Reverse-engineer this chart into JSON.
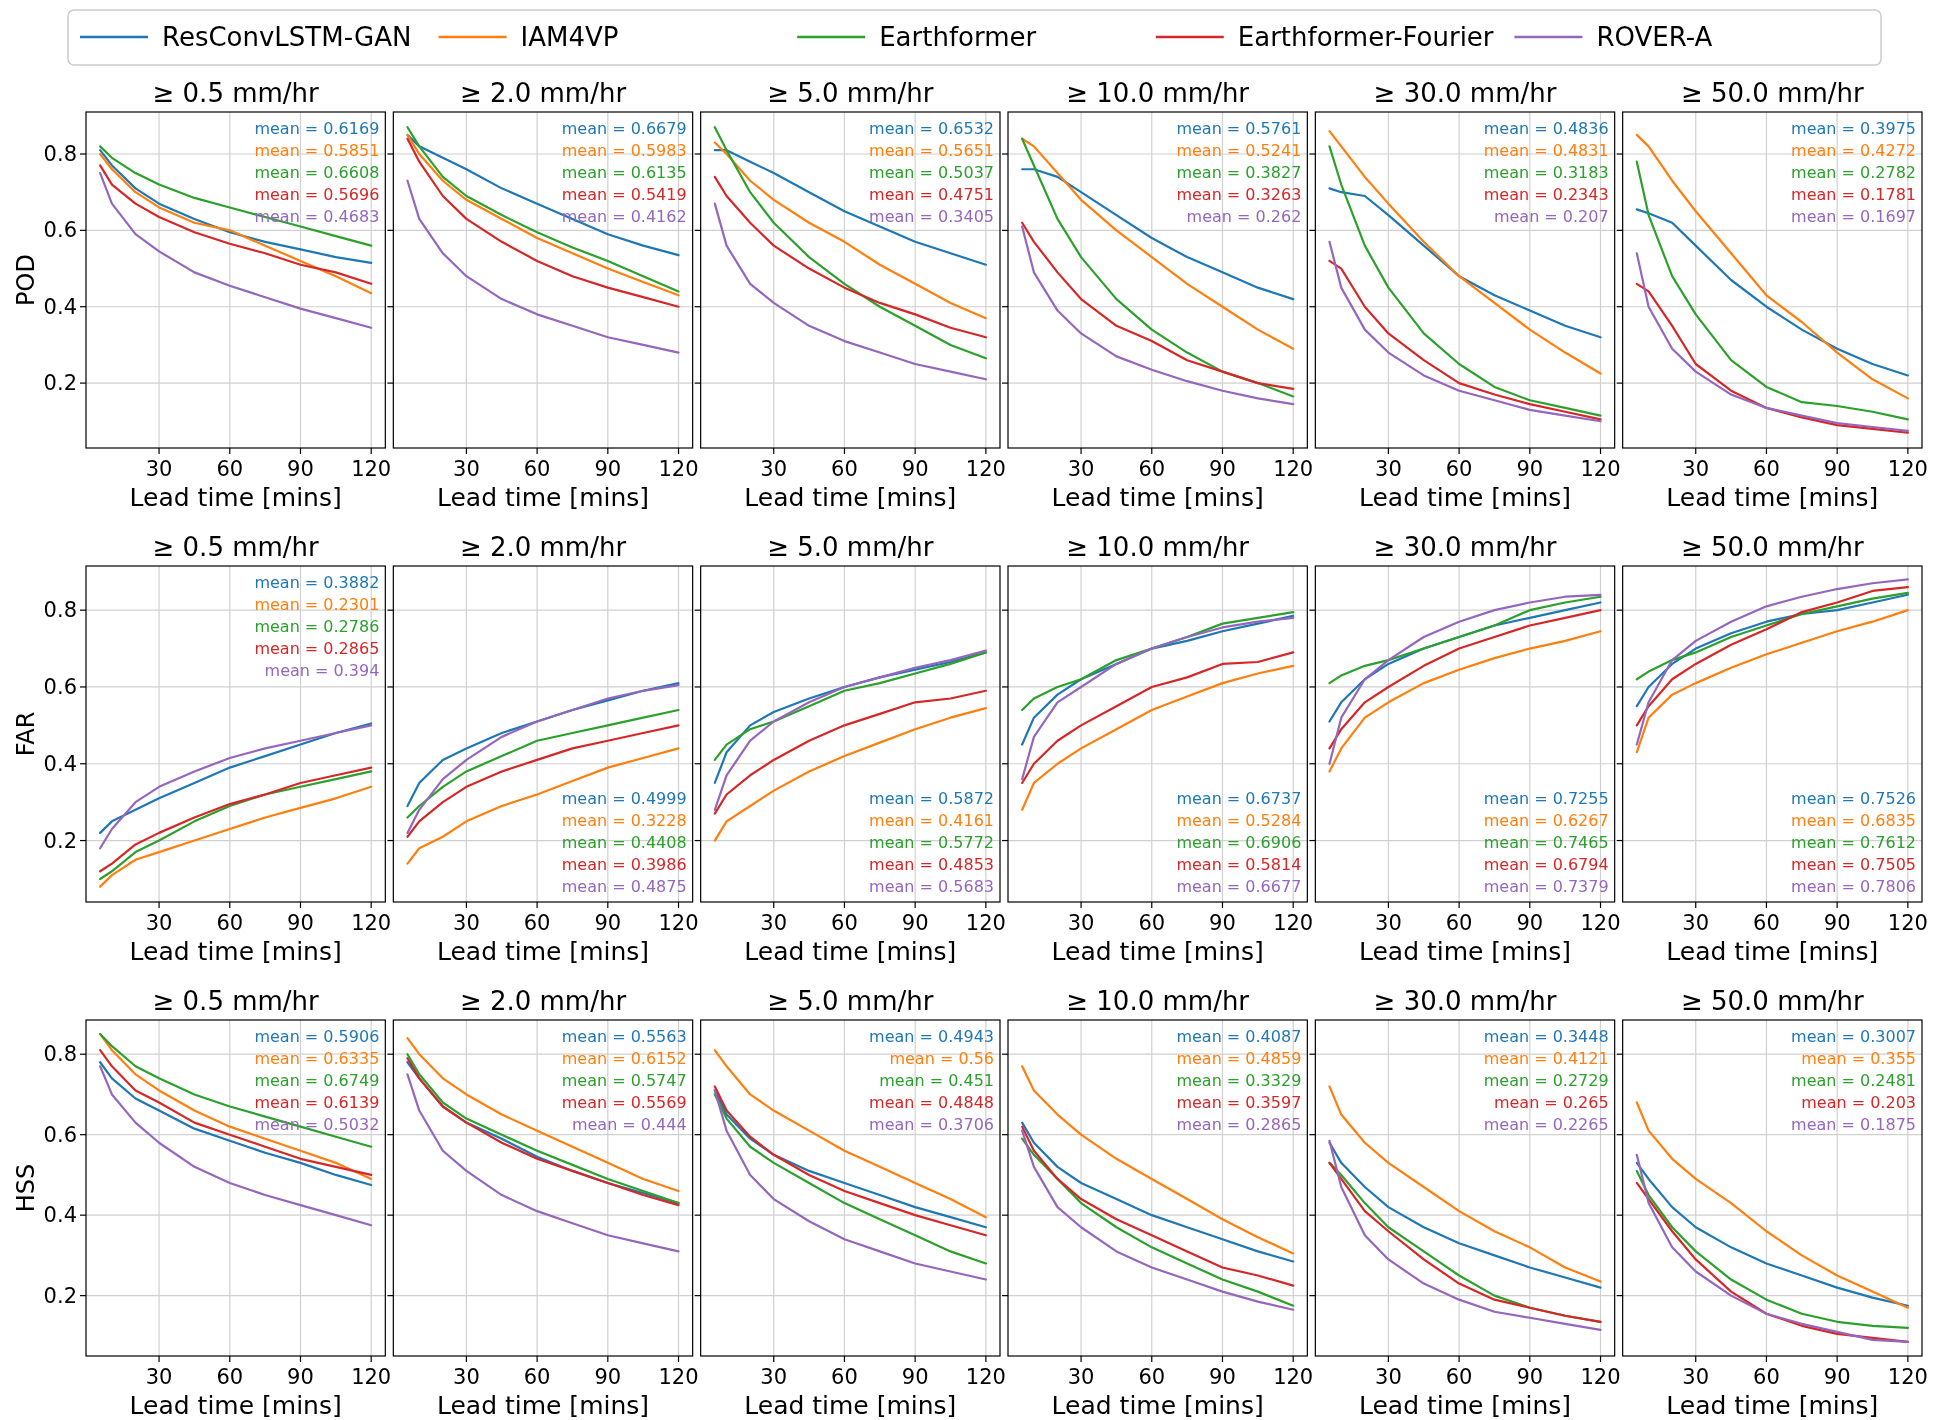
{
  "chart_data": [
    {
      "type": "line",
      "legend": "top",
      "title": "≥ 0.5 mm/hr",
      "xlabel": "Lead time [mins]",
      "ylabel": "POD",
      "x": [
        5,
        10,
        20,
        30,
        45,
        60,
        75,
        90,
        105,
        120
      ],
      "xlim": [
        -1,
        126
      ],
      "xticks": [
        30,
        60,
        90,
        120
      ],
      "ylim": [
        0.03,
        0.91
      ],
      "yticks": [
        0.2,
        0.4,
        0.6,
        0.8
      ],
      "grid": true,
      "annotations": [
        "mean = 0.6169",
        "mean = 0.5851",
        "mean = 0.6608",
        "mean = 0.5696",
        "mean = 0.4683"
      ],
      "series": [
        {
          "name": "ResConvLSTM-GAN",
          "color": "#1f77b4",
          "values": [
            0.81,
            0.77,
            0.71,
            0.67,
            0.63,
            0.595,
            0.57,
            0.55,
            0.53,
            0.515
          ]
        },
        {
          "name": "IAM4VP",
          "color": "#ff7f0e",
          "values": [
            0.8,
            0.76,
            0.7,
            0.66,
            0.62,
            0.6,
            0.56,
            0.52,
            0.48,
            0.435
          ]
        },
        {
          "name": "Earthformer",
          "color": "#2ca02c",
          "values": [
            0.82,
            0.79,
            0.75,
            0.72,
            0.685,
            0.66,
            0.635,
            0.61,
            0.585,
            0.56
          ]
        },
        {
          "name": "Earthformer-Fourier",
          "color": "#d62728",
          "values": [
            0.77,
            0.72,
            0.67,
            0.635,
            0.595,
            0.565,
            0.54,
            0.51,
            0.49,
            0.46
          ]
        },
        {
          "name": "ROVER-A",
          "color": "#9467bd",
          "values": [
            0.75,
            0.67,
            0.59,
            0.545,
            0.49,
            0.455,
            0.425,
            0.395,
            0.37,
            0.345
          ]
        }
      ]
    },
    {
      "type": "line",
      "title": "≥ 2.0 mm/hr",
      "xlabel": "Lead time [mins]",
      "tick_labels": "x",
      "x": [
        5,
        10,
        20,
        30,
        45,
        60,
        75,
        90,
        105,
        120
      ],
      "xlim": [
        -1,
        126
      ],
      "xticks": [
        30,
        60,
        90,
        120
      ],
      "ylim": [
        0.03,
        0.91
      ],
      "yticks": [
        0.2,
        0.4,
        0.6,
        0.8
      ],
      "grid": true,
      "annotations": [
        "mean = 0.6679",
        "mean = 0.5983",
        "mean = 0.6135",
        "mean = 0.5419",
        "mean = 0.4162"
      ],
      "series": [
        {
          "name": "ResConvLSTM-GAN",
          "color": "#1f77b4",
          "values": [
            0.85,
            0.82,
            0.79,
            0.76,
            0.71,
            0.67,
            0.63,
            0.59,
            0.56,
            0.535
          ]
        },
        {
          "name": "IAM4VP",
          "color": "#ff7f0e",
          "values": [
            0.85,
            0.8,
            0.73,
            0.68,
            0.63,
            0.58,
            0.54,
            0.5,
            0.465,
            0.43
          ]
        },
        {
          "name": "Earthformer",
          "color": "#2ca02c",
          "values": [
            0.87,
            0.82,
            0.74,
            0.69,
            0.64,
            0.595,
            0.555,
            0.52,
            0.48,
            0.44
          ]
        },
        {
          "name": "Earthformer-Fourier",
          "color": "#d62728",
          "values": [
            0.84,
            0.78,
            0.69,
            0.63,
            0.57,
            0.52,
            0.48,
            0.45,
            0.425,
            0.4
          ]
        },
        {
          "name": "ROVER-A",
          "color": "#9467bd",
          "values": [
            0.73,
            0.63,
            0.54,
            0.48,
            0.42,
            0.38,
            0.35,
            0.32,
            0.3,
            0.28
          ]
        }
      ]
    },
    {
      "type": "line",
      "title": "≥ 5.0 mm/hr",
      "xlabel": "Lead time [mins]",
      "tick_labels": "x",
      "x": [
        5,
        10,
        20,
        30,
        45,
        60,
        75,
        90,
        105,
        120
      ],
      "xlim": [
        -1,
        126
      ],
      "xticks": [
        30,
        60,
        90,
        120
      ],
      "ylim": [
        0.03,
        0.91
      ],
      "yticks": [
        0.2,
        0.4,
        0.6,
        0.8
      ],
      "grid": true,
      "annotations": [
        "mean = 0.6532",
        "mean = 0.5651",
        "mean = 0.5037",
        "mean = 0.4751",
        "mean = 0.3405"
      ],
      "series": [
        {
          "name": "ResConvLSTM-GAN",
          "color": "#1f77b4",
          "values": [
            0.81,
            0.81,
            0.78,
            0.75,
            0.7,
            0.65,
            0.61,
            0.57,
            0.54,
            0.51
          ]
        },
        {
          "name": "IAM4VP",
          "color": "#ff7f0e",
          "values": [
            0.83,
            0.8,
            0.73,
            0.68,
            0.62,
            0.57,
            0.51,
            0.46,
            0.41,
            0.37
          ]
        },
        {
          "name": "Earthformer",
          "color": "#2ca02c",
          "values": [
            0.87,
            0.81,
            0.7,
            0.62,
            0.53,
            0.46,
            0.4,
            0.35,
            0.3,
            0.265
          ]
        },
        {
          "name": "Earthformer-Fourier",
          "color": "#d62728",
          "values": [
            0.74,
            0.69,
            0.62,
            0.56,
            0.5,
            0.45,
            0.41,
            0.38,
            0.345,
            0.32
          ]
        },
        {
          "name": "ROVER-A",
          "color": "#9467bd",
          "values": [
            0.67,
            0.56,
            0.46,
            0.41,
            0.35,
            0.31,
            0.28,
            0.25,
            0.23,
            0.21
          ]
        }
      ]
    },
    {
      "type": "line",
      "title": "≥ 10.0 mm/hr",
      "xlabel": "Lead time [mins]",
      "tick_labels": "x",
      "x": [
        5,
        10,
        20,
        30,
        45,
        60,
        75,
        90,
        105,
        120
      ],
      "xlim": [
        -1,
        126
      ],
      "xticks": [
        30,
        60,
        90,
        120
      ],
      "ylim": [
        0.03,
        0.91
      ],
      "yticks": [
        0.2,
        0.4,
        0.6,
        0.8
      ],
      "grid": true,
      "annotations": [
        "mean = 0.5761",
        "mean = 0.5241",
        "mean = 0.3827",
        "mean = 0.3263",
        "mean = 0.262"
      ],
      "series": [
        {
          "name": "ResConvLSTM-GAN",
          "color": "#1f77b4",
          "values": [
            0.76,
            0.76,
            0.74,
            0.7,
            0.64,
            0.58,
            0.53,
            0.49,
            0.45,
            0.42
          ]
        },
        {
          "name": "IAM4VP",
          "color": "#ff7f0e",
          "values": [
            0.84,
            0.82,
            0.75,
            0.68,
            0.6,
            0.53,
            0.46,
            0.4,
            0.34,
            0.29
          ]
        },
        {
          "name": "Earthformer",
          "color": "#2ca02c",
          "values": [
            0.84,
            0.77,
            0.63,
            0.53,
            0.42,
            0.34,
            0.28,
            0.23,
            0.2,
            0.165
          ]
        },
        {
          "name": "Earthformer-Fourier",
          "color": "#d62728",
          "values": [
            0.62,
            0.57,
            0.49,
            0.42,
            0.35,
            0.31,
            0.26,
            0.23,
            0.2,
            0.185
          ]
        },
        {
          "name": "ROVER-A",
          "color": "#9467bd",
          "values": [
            0.61,
            0.49,
            0.39,
            0.33,
            0.27,
            0.235,
            0.205,
            0.18,
            0.16,
            0.145
          ]
        }
      ]
    },
    {
      "type": "line",
      "title": "≥ 30.0 mm/hr",
      "xlabel": "Lead time [mins]",
      "tick_labels": "x",
      "x": [
        5,
        10,
        20,
        30,
        45,
        60,
        75,
        90,
        105,
        120
      ],
      "xlim": [
        -1,
        126
      ],
      "xticks": [
        30,
        60,
        90,
        120
      ],
      "ylim": [
        0.03,
        0.91
      ],
      "yticks": [
        0.2,
        0.4,
        0.6,
        0.8
      ],
      "grid": true,
      "annotations": [
        "mean = 0.4836",
        "mean = 0.4831",
        "mean = 0.3183",
        "mean = 0.2343",
        "mean = 0.207"
      ],
      "series": [
        {
          "name": "ResConvLSTM-GAN",
          "color": "#1f77b4",
          "values": [
            0.71,
            0.7,
            0.69,
            0.64,
            0.56,
            0.48,
            0.43,
            0.39,
            0.35,
            0.32
          ]
        },
        {
          "name": "IAM4VP",
          "color": "#ff7f0e",
          "values": [
            0.86,
            0.82,
            0.74,
            0.67,
            0.57,
            0.48,
            0.41,
            0.34,
            0.28,
            0.225
          ]
        },
        {
          "name": "Earthformer",
          "color": "#2ca02c",
          "values": [
            0.82,
            0.72,
            0.56,
            0.45,
            0.33,
            0.25,
            0.19,
            0.155,
            0.135,
            0.115
          ]
        },
        {
          "name": "Earthformer-Fourier",
          "color": "#d62728",
          "values": [
            0.52,
            0.5,
            0.4,
            0.33,
            0.26,
            0.2,
            0.17,
            0.145,
            0.125,
            0.105
          ]
        },
        {
          "name": "ROVER-A",
          "color": "#9467bd",
          "values": [
            0.57,
            0.45,
            0.34,
            0.28,
            0.22,
            0.18,
            0.155,
            0.13,
            0.115,
            0.1
          ]
        }
      ]
    },
    {
      "type": "line",
      "title": "≥ 50.0 mm/hr",
      "xlabel": "Lead time [mins]",
      "tick_labels": "x",
      "x": [
        5,
        10,
        20,
        30,
        45,
        60,
        75,
        90,
        105,
        120
      ],
      "xlim": [
        -1,
        126
      ],
      "xticks": [
        30,
        60,
        90,
        120
      ],
      "ylim": [
        0.03,
        0.91
      ],
      "yticks": [
        0.2,
        0.4,
        0.6,
        0.8
      ],
      "grid": true,
      "annotations": [
        "mean = 0.3975",
        "mean = 0.4272",
        "mean = 0.2782",
        "mean = 0.1781",
        "mean = 0.1697"
      ],
      "series": [
        {
          "name": "ResConvLSTM-GAN",
          "color": "#1f77b4",
          "values": [
            0.655,
            0.645,
            0.62,
            0.56,
            0.47,
            0.4,
            0.34,
            0.29,
            0.25,
            0.22
          ]
        },
        {
          "name": "IAM4VP",
          "color": "#ff7f0e",
          "values": [
            0.85,
            0.82,
            0.73,
            0.65,
            0.54,
            0.43,
            0.36,
            0.28,
            0.21,
            0.16
          ]
        },
        {
          "name": "Earthformer",
          "color": "#2ca02c",
          "values": [
            0.78,
            0.64,
            0.48,
            0.38,
            0.26,
            0.19,
            0.15,
            0.14,
            0.125,
            0.105
          ]
        },
        {
          "name": "Earthformer-Fourier",
          "color": "#d62728",
          "values": [
            0.46,
            0.44,
            0.35,
            0.25,
            0.18,
            0.135,
            0.11,
            0.09,
            0.08,
            0.07
          ]
        },
        {
          "name": "ROVER-A",
          "color": "#9467bd",
          "values": [
            0.54,
            0.4,
            0.29,
            0.23,
            0.17,
            0.135,
            0.115,
            0.095,
            0.085,
            0.075
          ]
        }
      ]
    },
    {
      "type": "line",
      "title": "≥ 0.5 mm/hr",
      "xlabel": "Lead time [mins]",
      "ylabel": "FAR",
      "x": [
        5,
        10,
        20,
        30,
        45,
        60,
        75,
        90,
        105,
        120
      ],
      "xlim": [
        -1,
        126
      ],
      "xticks": [
        30,
        60,
        90,
        120
      ],
      "ylim": [
        0.04,
        0.915
      ],
      "yticks": [
        0.2,
        0.4,
        0.6,
        0.8
      ],
      "grid": true,
      "annotations": [
        "mean = 0.3882",
        "mean = 0.2301",
        "mean = 0.2786",
        "mean = 0.2865",
        "mean = 0.394"
      ],
      "series": [
        {
          "name": "ResConvLSTM-GAN",
          "color": "#1f77b4",
          "values": [
            0.22,
            0.25,
            0.28,
            0.31,
            0.35,
            0.39,
            0.42,
            0.45,
            0.48,
            0.505
          ]
        },
        {
          "name": "IAM4VP",
          "color": "#ff7f0e",
          "values": [
            0.08,
            0.11,
            0.15,
            0.17,
            0.2,
            0.23,
            0.26,
            0.285,
            0.31,
            0.34
          ]
        },
        {
          "name": "Earthformer",
          "color": "#2ca02c",
          "values": [
            0.1,
            0.12,
            0.17,
            0.2,
            0.25,
            0.29,
            0.32,
            0.34,
            0.36,
            0.38
          ]
        },
        {
          "name": "Earthformer-Fourier",
          "color": "#d62728",
          "values": [
            0.12,
            0.14,
            0.19,
            0.22,
            0.26,
            0.295,
            0.32,
            0.35,
            0.37,
            0.39
          ]
        },
        {
          "name": "ROVER-A",
          "color": "#9467bd",
          "values": [
            0.18,
            0.23,
            0.3,
            0.34,
            0.38,
            0.415,
            0.44,
            0.46,
            0.48,
            0.5
          ]
        }
      ]
    },
    {
      "type": "line",
      "title": "≥ 2.0 mm/hr",
      "xlabel": "Lead time [mins]",
      "tick_labels": "x",
      "x": [
        5,
        10,
        20,
        30,
        45,
        60,
        75,
        90,
        105,
        120
      ],
      "xlim": [
        -1,
        126
      ],
      "xticks": [
        30,
        60,
        90,
        120
      ],
      "ylim": [
        0.04,
        0.915
      ],
      "yticks": [
        0.2,
        0.4,
        0.6,
        0.8
      ],
      "grid": true,
      "annotations": [
        "mean = 0.4999",
        "mean = 0.3228",
        "mean = 0.4408",
        "mean = 0.3986",
        "mean = 0.4875"
      ],
      "series": [
        {
          "name": "ResConvLSTM-GAN",
          "color": "#1f77b4",
          "values": [
            0.29,
            0.35,
            0.41,
            0.44,
            0.48,
            0.51,
            0.54,
            0.565,
            0.59,
            0.61
          ]
        },
        {
          "name": "IAM4VP",
          "color": "#ff7f0e",
          "values": [
            0.14,
            0.18,
            0.21,
            0.25,
            0.29,
            0.32,
            0.355,
            0.39,
            0.415,
            0.44
          ]
        },
        {
          "name": "Earthformer",
          "color": "#2ca02c",
          "values": [
            0.26,
            0.29,
            0.34,
            0.38,
            0.42,
            0.46,
            0.48,
            0.5,
            0.52,
            0.54
          ]
        },
        {
          "name": "Earthformer-Fourier",
          "color": "#d62728",
          "values": [
            0.21,
            0.25,
            0.3,
            0.34,
            0.38,
            0.41,
            0.44,
            0.46,
            0.48,
            0.5
          ]
        },
        {
          "name": "ROVER-A",
          "color": "#9467bd",
          "values": [
            0.22,
            0.28,
            0.36,
            0.41,
            0.47,
            0.51,
            0.54,
            0.57,
            0.59,
            0.605
          ]
        }
      ]
    },
    {
      "type": "line",
      "title": "≥ 5.0 mm/hr",
      "xlabel": "Lead time [mins]",
      "tick_labels": "x",
      "x": [
        5,
        10,
        20,
        30,
        45,
        60,
        75,
        90,
        105,
        120
      ],
      "xlim": [
        -1,
        126
      ],
      "xticks": [
        30,
        60,
        90,
        120
      ],
      "ylim": [
        0.04,
        0.915
      ],
      "yticks": [
        0.2,
        0.4,
        0.6,
        0.8
      ],
      "grid": true,
      "annotations": [
        "mean = 0.5872",
        "mean = 0.4161",
        "mean = 0.5772",
        "mean = 0.4853",
        "mean = 0.5683"
      ],
      "series": [
        {
          "name": "ResConvLSTM-GAN",
          "color": "#1f77b4",
          "values": [
            0.35,
            0.43,
            0.5,
            0.535,
            0.57,
            0.6,
            0.625,
            0.645,
            0.665,
            0.69
          ]
        },
        {
          "name": "IAM4VP",
          "color": "#ff7f0e",
          "values": [
            0.2,
            0.25,
            0.29,
            0.33,
            0.38,
            0.42,
            0.455,
            0.49,
            0.52,
            0.545
          ]
        },
        {
          "name": "Earthformer",
          "color": "#2ca02c",
          "values": [
            0.41,
            0.45,
            0.49,
            0.51,
            0.55,
            0.59,
            0.61,
            0.635,
            0.66,
            0.69
          ]
        },
        {
          "name": "Earthformer-Fourier",
          "color": "#d62728",
          "values": [
            0.27,
            0.32,
            0.37,
            0.41,
            0.46,
            0.5,
            0.53,
            0.56,
            0.57,
            0.59
          ]
        },
        {
          "name": "ROVER-A",
          "color": "#9467bd",
          "values": [
            0.28,
            0.37,
            0.46,
            0.51,
            0.56,
            0.6,
            0.625,
            0.65,
            0.67,
            0.695
          ]
        }
      ]
    },
    {
      "type": "line",
      "title": "≥ 10.0 mm/hr",
      "xlabel": "Lead time [mins]",
      "tick_labels": "x",
      "x": [
        5,
        10,
        20,
        30,
        45,
        60,
        75,
        90,
        105,
        120
      ],
      "xlim": [
        -1,
        126
      ],
      "xticks": [
        30,
        60,
        90,
        120
      ],
      "ylim": [
        0.04,
        0.915
      ],
      "yticks": [
        0.2,
        0.4,
        0.6,
        0.8
      ],
      "grid": true,
      "annotations": [
        "mean = 0.6737",
        "mean = 0.5284",
        "mean = 0.6906",
        "mean = 0.5814",
        "mean = 0.6677"
      ],
      "series": [
        {
          "name": "ResConvLSTM-GAN",
          "color": "#1f77b4",
          "values": [
            0.45,
            0.52,
            0.58,
            0.62,
            0.66,
            0.7,
            0.72,
            0.745,
            0.765,
            0.785
          ]
        },
        {
          "name": "IAM4VP",
          "color": "#ff7f0e",
          "values": [
            0.28,
            0.35,
            0.4,
            0.44,
            0.49,
            0.54,
            0.575,
            0.61,
            0.635,
            0.655
          ]
        },
        {
          "name": "Earthformer",
          "color": "#2ca02c",
          "values": [
            0.54,
            0.57,
            0.6,
            0.62,
            0.67,
            0.7,
            0.73,
            0.765,
            0.78,
            0.795
          ]
        },
        {
          "name": "Earthformer-Fourier",
          "color": "#d62728",
          "values": [
            0.35,
            0.4,
            0.46,
            0.5,
            0.55,
            0.6,
            0.625,
            0.66,
            0.665,
            0.69
          ]
        },
        {
          "name": "ROVER-A",
          "color": "#9467bd",
          "values": [
            0.36,
            0.47,
            0.56,
            0.6,
            0.66,
            0.7,
            0.73,
            0.755,
            0.77,
            0.78
          ]
        }
      ]
    },
    {
      "type": "line",
      "title": "≥ 30.0 mm/hr",
      "xlabel": "Lead time [mins]",
      "tick_labels": "x",
      "x": [
        5,
        10,
        20,
        30,
        45,
        60,
        75,
        90,
        105,
        120
      ],
      "xlim": [
        -1,
        126
      ],
      "xticks": [
        30,
        60,
        90,
        120
      ],
      "ylim": [
        0.04,
        0.915
      ],
      "yticks": [
        0.2,
        0.4,
        0.6,
        0.8
      ],
      "grid": true,
      "annotations": [
        "mean = 0.7255",
        "mean = 0.6267",
        "mean = 0.7465",
        "mean = 0.6794",
        "mean = 0.7379"
      ],
      "series": [
        {
          "name": "ResConvLSTM-GAN",
          "color": "#1f77b4",
          "values": [
            0.51,
            0.56,
            0.62,
            0.66,
            0.7,
            0.73,
            0.76,
            0.78,
            0.8,
            0.82
          ]
        },
        {
          "name": "IAM4VP",
          "color": "#ff7f0e",
          "values": [
            0.38,
            0.44,
            0.52,
            0.56,
            0.61,
            0.645,
            0.675,
            0.7,
            0.72,
            0.745
          ]
        },
        {
          "name": "Earthformer",
          "color": "#2ca02c",
          "values": [
            0.61,
            0.63,
            0.655,
            0.67,
            0.7,
            0.73,
            0.76,
            0.8,
            0.82,
            0.835
          ]
        },
        {
          "name": "Earthformer-Fourier",
          "color": "#d62728",
          "values": [
            0.44,
            0.49,
            0.56,
            0.6,
            0.655,
            0.7,
            0.73,
            0.76,
            0.78,
            0.8
          ]
        },
        {
          "name": "ROVER-A",
          "color": "#9467bd",
          "values": [
            0.4,
            0.52,
            0.62,
            0.67,
            0.73,
            0.77,
            0.8,
            0.82,
            0.835,
            0.84
          ]
        }
      ]
    },
    {
      "type": "line",
      "title": "≥ 50.0 mm/hr",
      "xlabel": "Lead time [mins]",
      "tick_labels": "x",
      "x": [
        5,
        10,
        20,
        30,
        45,
        60,
        75,
        90,
        105,
        120
      ],
      "xlim": [
        -1,
        126
      ],
      "xticks": [
        30,
        60,
        90,
        120
      ],
      "ylim": [
        0.04,
        0.915
      ],
      "yticks": [
        0.2,
        0.4,
        0.6,
        0.8
      ],
      "grid": true,
      "annotations": [
        "mean = 0.7526",
        "mean = 0.6835",
        "mean = 0.7612",
        "mean = 0.7505",
        "mean = 0.7806"
      ],
      "series": [
        {
          "name": "ResConvLSTM-GAN",
          "color": "#1f77b4",
          "values": [
            0.55,
            0.6,
            0.66,
            0.7,
            0.74,
            0.77,
            0.79,
            0.8,
            0.82,
            0.84
          ]
        },
        {
          "name": "IAM4VP",
          "color": "#ff7f0e",
          "values": [
            0.43,
            0.52,
            0.58,
            0.61,
            0.65,
            0.685,
            0.715,
            0.745,
            0.77,
            0.8
          ]
        },
        {
          "name": "Earthformer",
          "color": "#2ca02c",
          "values": [
            0.62,
            0.64,
            0.67,
            0.69,
            0.73,
            0.76,
            0.79,
            0.81,
            0.83,
            0.845
          ]
        },
        {
          "name": "Earthformer-Fourier",
          "color": "#d62728",
          "values": [
            0.5,
            0.55,
            0.62,
            0.66,
            0.71,
            0.75,
            0.795,
            0.82,
            0.85,
            0.86
          ]
        },
        {
          "name": "ROVER-A",
          "color": "#9467bd",
          "values": [
            0.45,
            0.56,
            0.67,
            0.72,
            0.77,
            0.81,
            0.835,
            0.855,
            0.87,
            0.88
          ]
        }
      ]
    },
    {
      "type": "line",
      "title": "≥ 0.5 mm/hr",
      "xlabel": "Lead time [mins]",
      "ylabel": "HSS",
      "x": [
        5,
        10,
        20,
        30,
        45,
        60,
        75,
        90,
        105,
        120
      ],
      "xlim": [
        -1,
        126
      ],
      "xticks": [
        30,
        60,
        90,
        120
      ],
      "ylim": [
        0.05,
        0.885
      ],
      "yticks": [
        0.2,
        0.4,
        0.6,
        0.8
      ],
      "grid": true,
      "annotations": [
        "mean = 0.5906",
        "mean = 0.6335",
        "mean = 0.6749",
        "mean = 0.6139",
        "mean = 0.5032"
      ],
      "series": [
        {
          "name": "ResConvLSTM-GAN",
          "color": "#1f77b4",
          "values": [
            0.78,
            0.74,
            0.69,
            0.66,
            0.615,
            0.585,
            0.555,
            0.53,
            0.5,
            0.475
          ]
        },
        {
          "name": "IAM4VP",
          "color": "#ff7f0e",
          "values": [
            0.85,
            0.81,
            0.75,
            0.71,
            0.66,
            0.62,
            0.59,
            0.56,
            0.53,
            0.49
          ]
        },
        {
          "name": "Earthformer",
          "color": "#2ca02c",
          "values": [
            0.85,
            0.82,
            0.77,
            0.74,
            0.7,
            0.67,
            0.645,
            0.62,
            0.595,
            0.57
          ]
        },
        {
          "name": "Earthformer-Fourier",
          "color": "#d62728",
          "values": [
            0.81,
            0.77,
            0.71,
            0.68,
            0.63,
            0.6,
            0.57,
            0.54,
            0.52,
            0.5
          ]
        },
        {
          "name": "ROVER-A",
          "color": "#9467bd",
          "values": [
            0.77,
            0.7,
            0.63,
            0.58,
            0.52,
            0.48,
            0.45,
            0.425,
            0.4,
            0.375
          ]
        }
      ]
    },
    {
      "type": "line",
      "title": "≥ 2.0 mm/hr",
      "xlabel": "Lead time [mins]",
      "tick_labels": "x",
      "x": [
        5,
        10,
        20,
        30,
        45,
        60,
        75,
        90,
        105,
        120
      ],
      "xlim": [
        -1,
        126
      ],
      "xticks": [
        30,
        60,
        90,
        120
      ],
      "ylim": [
        0.05,
        0.885
      ],
      "yticks": [
        0.2,
        0.4,
        0.6,
        0.8
      ],
      "grid": true,
      "annotations": [
        "mean = 0.5563",
        "mean = 0.6152",
        "mean = 0.5747",
        "mean = 0.5569",
        "mean = 0.444"
      ],
      "series": [
        {
          "name": "ResConvLSTM-GAN",
          "color": "#1f77b4",
          "values": [
            0.78,
            0.74,
            0.67,
            0.63,
            0.59,
            0.545,
            0.51,
            0.48,
            0.455,
            0.43
          ]
        },
        {
          "name": "IAM4VP",
          "color": "#ff7f0e",
          "values": [
            0.84,
            0.8,
            0.74,
            0.7,
            0.65,
            0.61,
            0.57,
            0.53,
            0.49,
            0.46
          ]
        },
        {
          "name": "Earthformer",
          "color": "#2ca02c",
          "values": [
            0.8,
            0.75,
            0.68,
            0.64,
            0.6,
            0.56,
            0.525,
            0.49,
            0.46,
            0.43
          ]
        },
        {
          "name": "Earthformer-Fourier",
          "color": "#d62728",
          "values": [
            0.79,
            0.74,
            0.67,
            0.63,
            0.58,
            0.54,
            0.51,
            0.48,
            0.45,
            0.425
          ]
        },
        {
          "name": "ROVER-A",
          "color": "#9467bd",
          "values": [
            0.75,
            0.66,
            0.56,
            0.51,
            0.45,
            0.41,
            0.38,
            0.35,
            0.33,
            0.31
          ]
        }
      ]
    },
    {
      "type": "line",
      "title": "≥ 5.0 mm/hr",
      "xlabel": "Lead time [mins]",
      "tick_labels": "x",
      "x": [
        5,
        10,
        20,
        30,
        45,
        60,
        75,
        90,
        105,
        120
      ],
      "xlim": [
        -1,
        126
      ],
      "xticks": [
        30,
        60,
        90,
        120
      ],
      "ylim": [
        0.05,
        0.885
      ],
      "yticks": [
        0.2,
        0.4,
        0.6,
        0.8
      ],
      "grid": true,
      "annotations": [
        "mean = 0.4943",
        "mean = 0.56",
        "mean = 0.451",
        "mean = 0.4848",
        "mean = 0.3706"
      ],
      "series": [
        {
          "name": "ResConvLSTM-GAN",
          "color": "#1f77b4",
          "values": [
            0.71,
            0.65,
            0.59,
            0.55,
            0.51,
            0.48,
            0.45,
            0.42,
            0.395,
            0.37
          ]
        },
        {
          "name": "IAM4VP",
          "color": "#ff7f0e",
          "values": [
            0.81,
            0.77,
            0.7,
            0.66,
            0.61,
            0.56,
            0.52,
            0.48,
            0.44,
            0.395
          ]
        },
        {
          "name": "Earthformer",
          "color": "#2ca02c",
          "values": [
            0.7,
            0.64,
            0.57,
            0.53,
            0.48,
            0.43,
            0.39,
            0.35,
            0.31,
            0.28
          ]
        },
        {
          "name": "Earthformer-Fourier",
          "color": "#d62728",
          "values": [
            0.72,
            0.66,
            0.595,
            0.55,
            0.5,
            0.46,
            0.43,
            0.4,
            0.375,
            0.35
          ]
        },
        {
          "name": "ROVER-A",
          "color": "#9467bd",
          "values": [
            0.71,
            0.61,
            0.5,
            0.44,
            0.385,
            0.34,
            0.31,
            0.28,
            0.26,
            0.24
          ]
        }
      ]
    },
    {
      "type": "line",
      "title": "≥ 10.0 mm/hr",
      "xlabel": "Lead time [mins]",
      "tick_labels": "x",
      "x": [
        5,
        10,
        20,
        30,
        45,
        60,
        75,
        90,
        105,
        120
      ],
      "xlim": [
        -1,
        126
      ],
      "xticks": [
        30,
        60,
        90,
        120
      ],
      "ylim": [
        0.05,
        0.885
      ],
      "yticks": [
        0.2,
        0.4,
        0.6,
        0.8
      ],
      "grid": true,
      "annotations": [
        "mean = 0.4087",
        "mean = 0.4859",
        "mean = 0.3329",
        "mean = 0.3597",
        "mean = 0.2865"
      ],
      "series": [
        {
          "name": "ResConvLSTM-GAN",
          "color": "#1f77b4",
          "values": [
            0.63,
            0.58,
            0.52,
            0.48,
            0.44,
            0.4,
            0.37,
            0.34,
            0.31,
            0.285
          ]
        },
        {
          "name": "IAM4VP",
          "color": "#ff7f0e",
          "values": [
            0.77,
            0.71,
            0.65,
            0.6,
            0.54,
            0.49,
            0.44,
            0.39,
            0.345,
            0.305
          ]
        },
        {
          "name": "Earthformer",
          "color": "#2ca02c",
          "values": [
            0.59,
            0.55,
            0.49,
            0.43,
            0.37,
            0.32,
            0.28,
            0.24,
            0.21,
            0.175
          ]
        },
        {
          "name": "Earthformer-Fourier",
          "color": "#d62728",
          "values": [
            0.62,
            0.56,
            0.49,
            0.44,
            0.39,
            0.35,
            0.31,
            0.27,
            0.25,
            0.225
          ]
        },
        {
          "name": "ROVER-A",
          "color": "#9467bd",
          "values": [
            0.61,
            0.52,
            0.42,
            0.37,
            0.31,
            0.27,
            0.24,
            0.21,
            0.185,
            0.165
          ]
        }
      ]
    },
    {
      "type": "line",
      "title": "≥ 30.0 mm/hr",
      "xlabel": "Lead time [mins]",
      "tick_labels": "x",
      "x": [
        5,
        10,
        20,
        30,
        45,
        60,
        75,
        90,
        105,
        120
      ],
      "xlim": [
        -1,
        126
      ],
      "xticks": [
        30,
        60,
        90,
        120
      ],
      "ylim": [
        0.05,
        0.885
      ],
      "yticks": [
        0.2,
        0.4,
        0.6,
        0.8
      ],
      "grid": true,
      "annotations": [
        "mean = 0.3448",
        "mean = 0.4121",
        "mean = 0.2729",
        "mean = 0.265",
        "mean = 0.2265"
      ],
      "series": [
        {
          "name": "ResConvLSTM-GAN",
          "color": "#1f77b4",
          "values": [
            0.58,
            0.53,
            0.47,
            0.42,
            0.37,
            0.33,
            0.3,
            0.27,
            0.245,
            0.22
          ]
        },
        {
          "name": "IAM4VP",
          "color": "#ff7f0e",
          "values": [
            0.72,
            0.65,
            0.58,
            0.53,
            0.47,
            0.41,
            0.36,
            0.32,
            0.27,
            0.235
          ]
        },
        {
          "name": "Earthformer",
          "color": "#2ca02c",
          "values": [
            0.53,
            0.5,
            0.43,
            0.37,
            0.31,
            0.25,
            0.2,
            0.17,
            0.15,
            0.135
          ]
        },
        {
          "name": "Earthformer-Fourier",
          "color": "#d62728",
          "values": [
            0.53,
            0.49,
            0.41,
            0.36,
            0.29,
            0.23,
            0.19,
            0.17,
            0.15,
            0.135
          ]
        },
        {
          "name": "ROVER-A",
          "color": "#9467bd",
          "values": [
            0.585,
            0.47,
            0.35,
            0.29,
            0.23,
            0.19,
            0.16,
            0.145,
            0.13,
            0.115
          ]
        }
      ]
    },
    {
      "type": "line",
      "title": "≥ 50.0 mm/hr",
      "xlabel": "Lead time [mins]",
      "tick_labels": "x",
      "x": [
        5,
        10,
        20,
        30,
        45,
        60,
        75,
        90,
        105,
        120
      ],
      "xlim": [
        -1,
        126
      ],
      "xticks": [
        30,
        60,
        90,
        120
      ],
      "ylim": [
        0.05,
        0.885
      ],
      "yticks": [
        0.2,
        0.4,
        0.6,
        0.8
      ],
      "grid": true,
      "annotations": [
        "mean = 0.3007",
        "mean = 0.355",
        "mean = 0.2481",
        "mean = 0.203",
        "mean = 0.1875"
      ],
      "series": [
        {
          "name": "ResConvLSTM-GAN",
          "color": "#1f77b4",
          "values": [
            0.53,
            0.49,
            0.42,
            0.37,
            0.32,
            0.28,
            0.25,
            0.22,
            0.195,
            0.175
          ]
        },
        {
          "name": "IAM4VP",
          "color": "#ff7f0e",
          "values": [
            0.68,
            0.61,
            0.54,
            0.49,
            0.43,
            0.36,
            0.3,
            0.25,
            0.21,
            0.17
          ]
        },
        {
          "name": "Earthformer",
          "color": "#2ca02c",
          "values": [
            0.51,
            0.45,
            0.37,
            0.31,
            0.24,
            0.19,
            0.155,
            0.135,
            0.125,
            0.12
          ]
        },
        {
          "name": "Earthformer-Fourier",
          "color": "#d62728",
          "values": [
            0.48,
            0.44,
            0.36,
            0.29,
            0.21,
            0.155,
            0.125,
            0.105,
            0.095,
            0.085
          ]
        },
        {
          "name": "ROVER-A",
          "color": "#9467bd",
          "values": [
            0.55,
            0.43,
            0.32,
            0.26,
            0.2,
            0.155,
            0.13,
            0.11,
            0.09,
            0.085
          ]
        }
      ]
    }
  ]
}
